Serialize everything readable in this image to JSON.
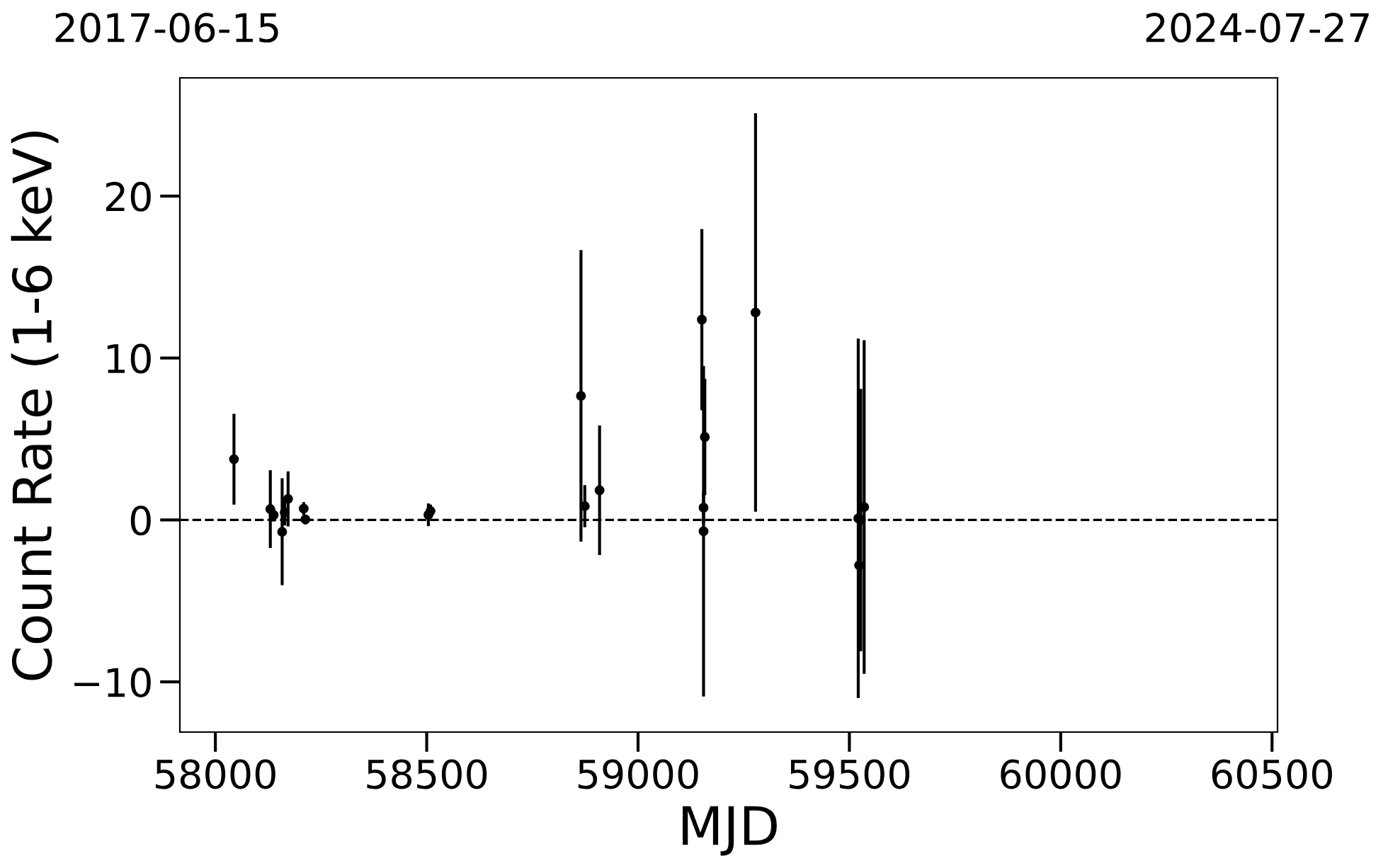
{
  "chart_data": {
    "type": "scatter",
    "xlabel": "MJD",
    "ylabel": "Count Rate (1-6 keV)",
    "annotations": [
      "2017-06-15",
      "2024-07-27"
    ],
    "xlim": [
      57916,
      60513
    ],
    "xticks": [
      58000,
      58500,
      59000,
      59500,
      60000,
      60500
    ],
    "ylim": [
      -13.1,
      27.3
    ],
    "yticks": [
      {
        "value": -10,
        "label": "−10"
      },
      0,
      10,
      20
    ],
    "marker": "circle",
    "grid": false,
    "legend": false,
    "ref_lines": [
      {
        "axis": "y",
        "value": 0,
        "color": "#000000",
        "line_style": "dashed"
      }
    ],
    "series": [
      {
        "color": "#000000",
        "x": [
          58044,
          58130,
          58138,
          58158,
          58164,
          58172,
          58209,
          58213,
          58504,
          58509,
          58865,
          58874,
          58909,
          59151,
          59158,
          59155,
          59155,
          59278,
          59535,
          59521,
          59523,
          59527
        ],
        "values": [
          3.75,
          0.67,
          0.3,
          -0.73,
          0.46,
          1.3,
          0.7,
          0.03,
          0.32,
          0.55,
          7.66,
          0.85,
          1.83,
          12.37,
          5.12,
          0.76,
          -0.7,
          12.81,
          0.8,
          0.1,
          -2.8,
          0.0
        ],
        "errors": [
          2.8,
          2.4,
          0.4,
          3.3,
          0.8,
          1.7,
          0.4,
          0.3,
          0.7,
          0.4,
          9,
          1.3,
          4,
          5.6,
          3.6,
          1,
          10.2,
          12.3,
          10.3,
          11.1,
          5.3,
          8.1
        ]
      }
    ]
  }
}
